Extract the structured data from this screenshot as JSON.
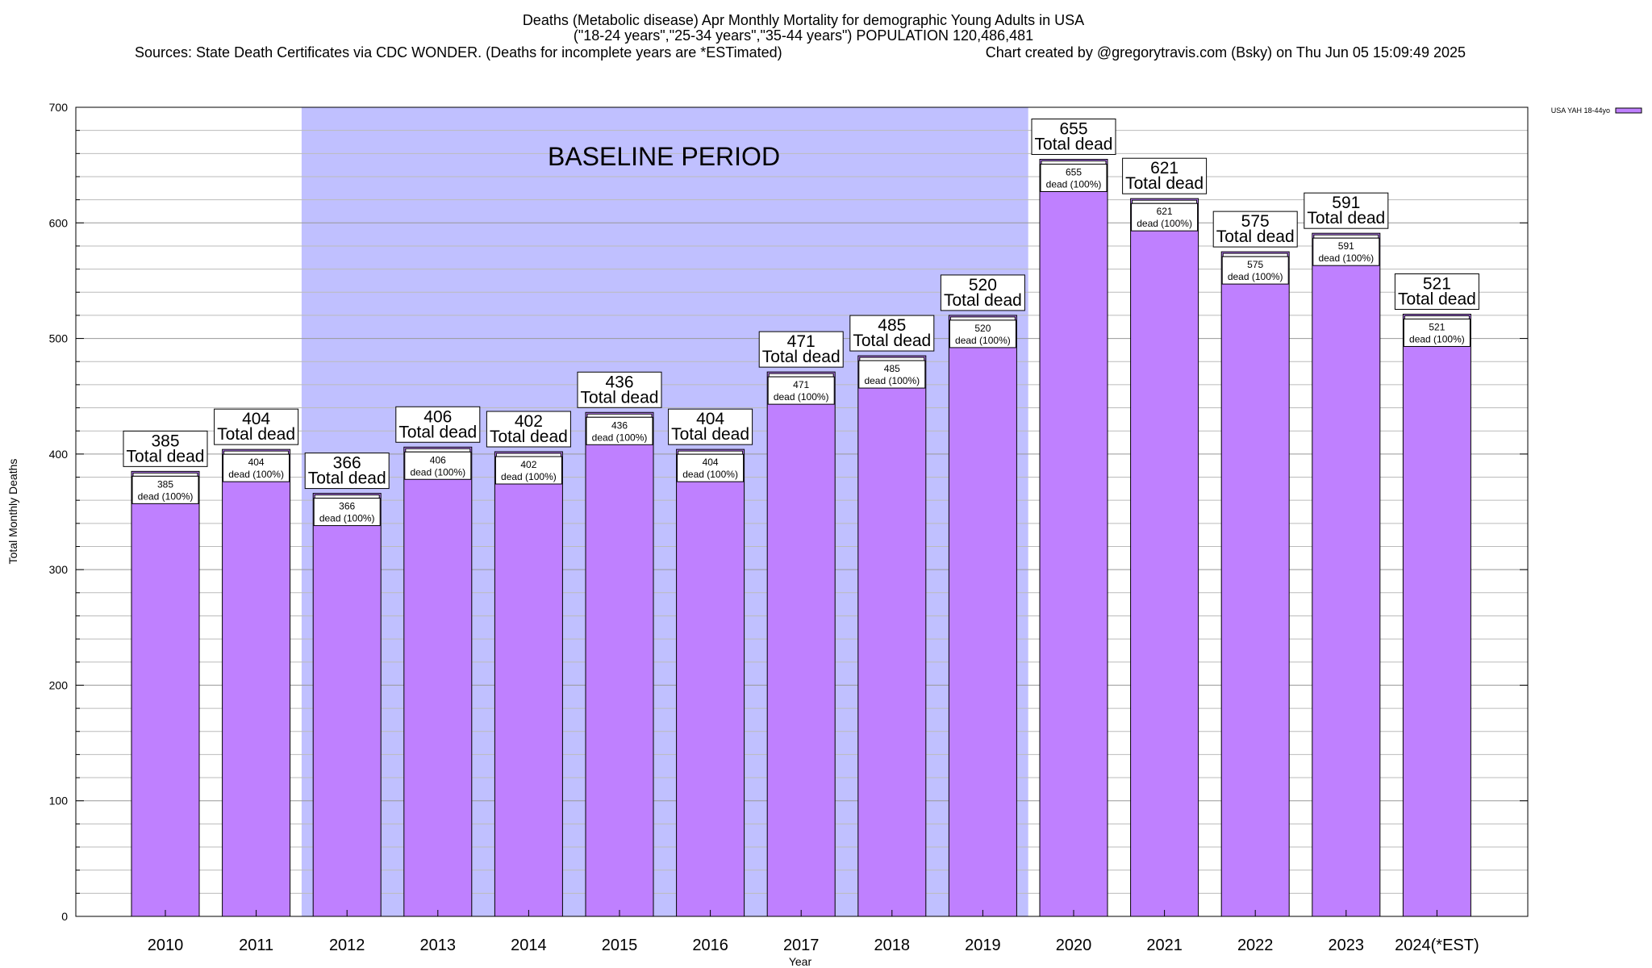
{
  "chart_data": {
    "type": "bar",
    "title_lines": [
      "Deaths (Metabolic disease) Apr Monthly Mortality for demographic Young Adults in USA",
      "(\"18-24 years\",\"25-34 years\",\"35-44 years\") POPULATION 120,486,481"
    ],
    "sources": "Sources: State Death Certificates via CDC WONDER. (Deaths for incomplete years are *ESTimated)",
    "credit": "Chart created by @gregorytravis.com (Bsky) on Thu Jun 05 15:09:49 2025",
    "xlabel": "Year",
    "ylabel": "Total Monthly Deaths",
    "ylim": [
      0,
      700
    ],
    "yticks": [
      0,
      100,
      200,
      300,
      400,
      500,
      600,
      700
    ],
    "categories": [
      "2010",
      "2011",
      "2012",
      "2013",
      "2014",
      "2015",
      "2016",
      "2017",
      "2018",
      "2019",
      "2020",
      "2021",
      "2022",
      "2023",
      "2024(*EST)"
    ],
    "series": [
      {
        "name": "USA YAH 18-44yo",
        "color": "#bf80ff",
        "values": [
          385,
          404,
          366,
          406,
          402,
          436,
          404,
          471,
          485,
          520,
          655,
          621,
          575,
          591,
          521
        ]
      }
    ],
    "total_label_suffix": "Total dead",
    "inner_label_suffix": "dead (100%)",
    "baseline": {
      "label": "BASELINE PERIOD",
      "start": "2012",
      "end": "2019",
      "color": "#c0c0ff"
    },
    "legend": "top-right",
    "grid": true
  }
}
